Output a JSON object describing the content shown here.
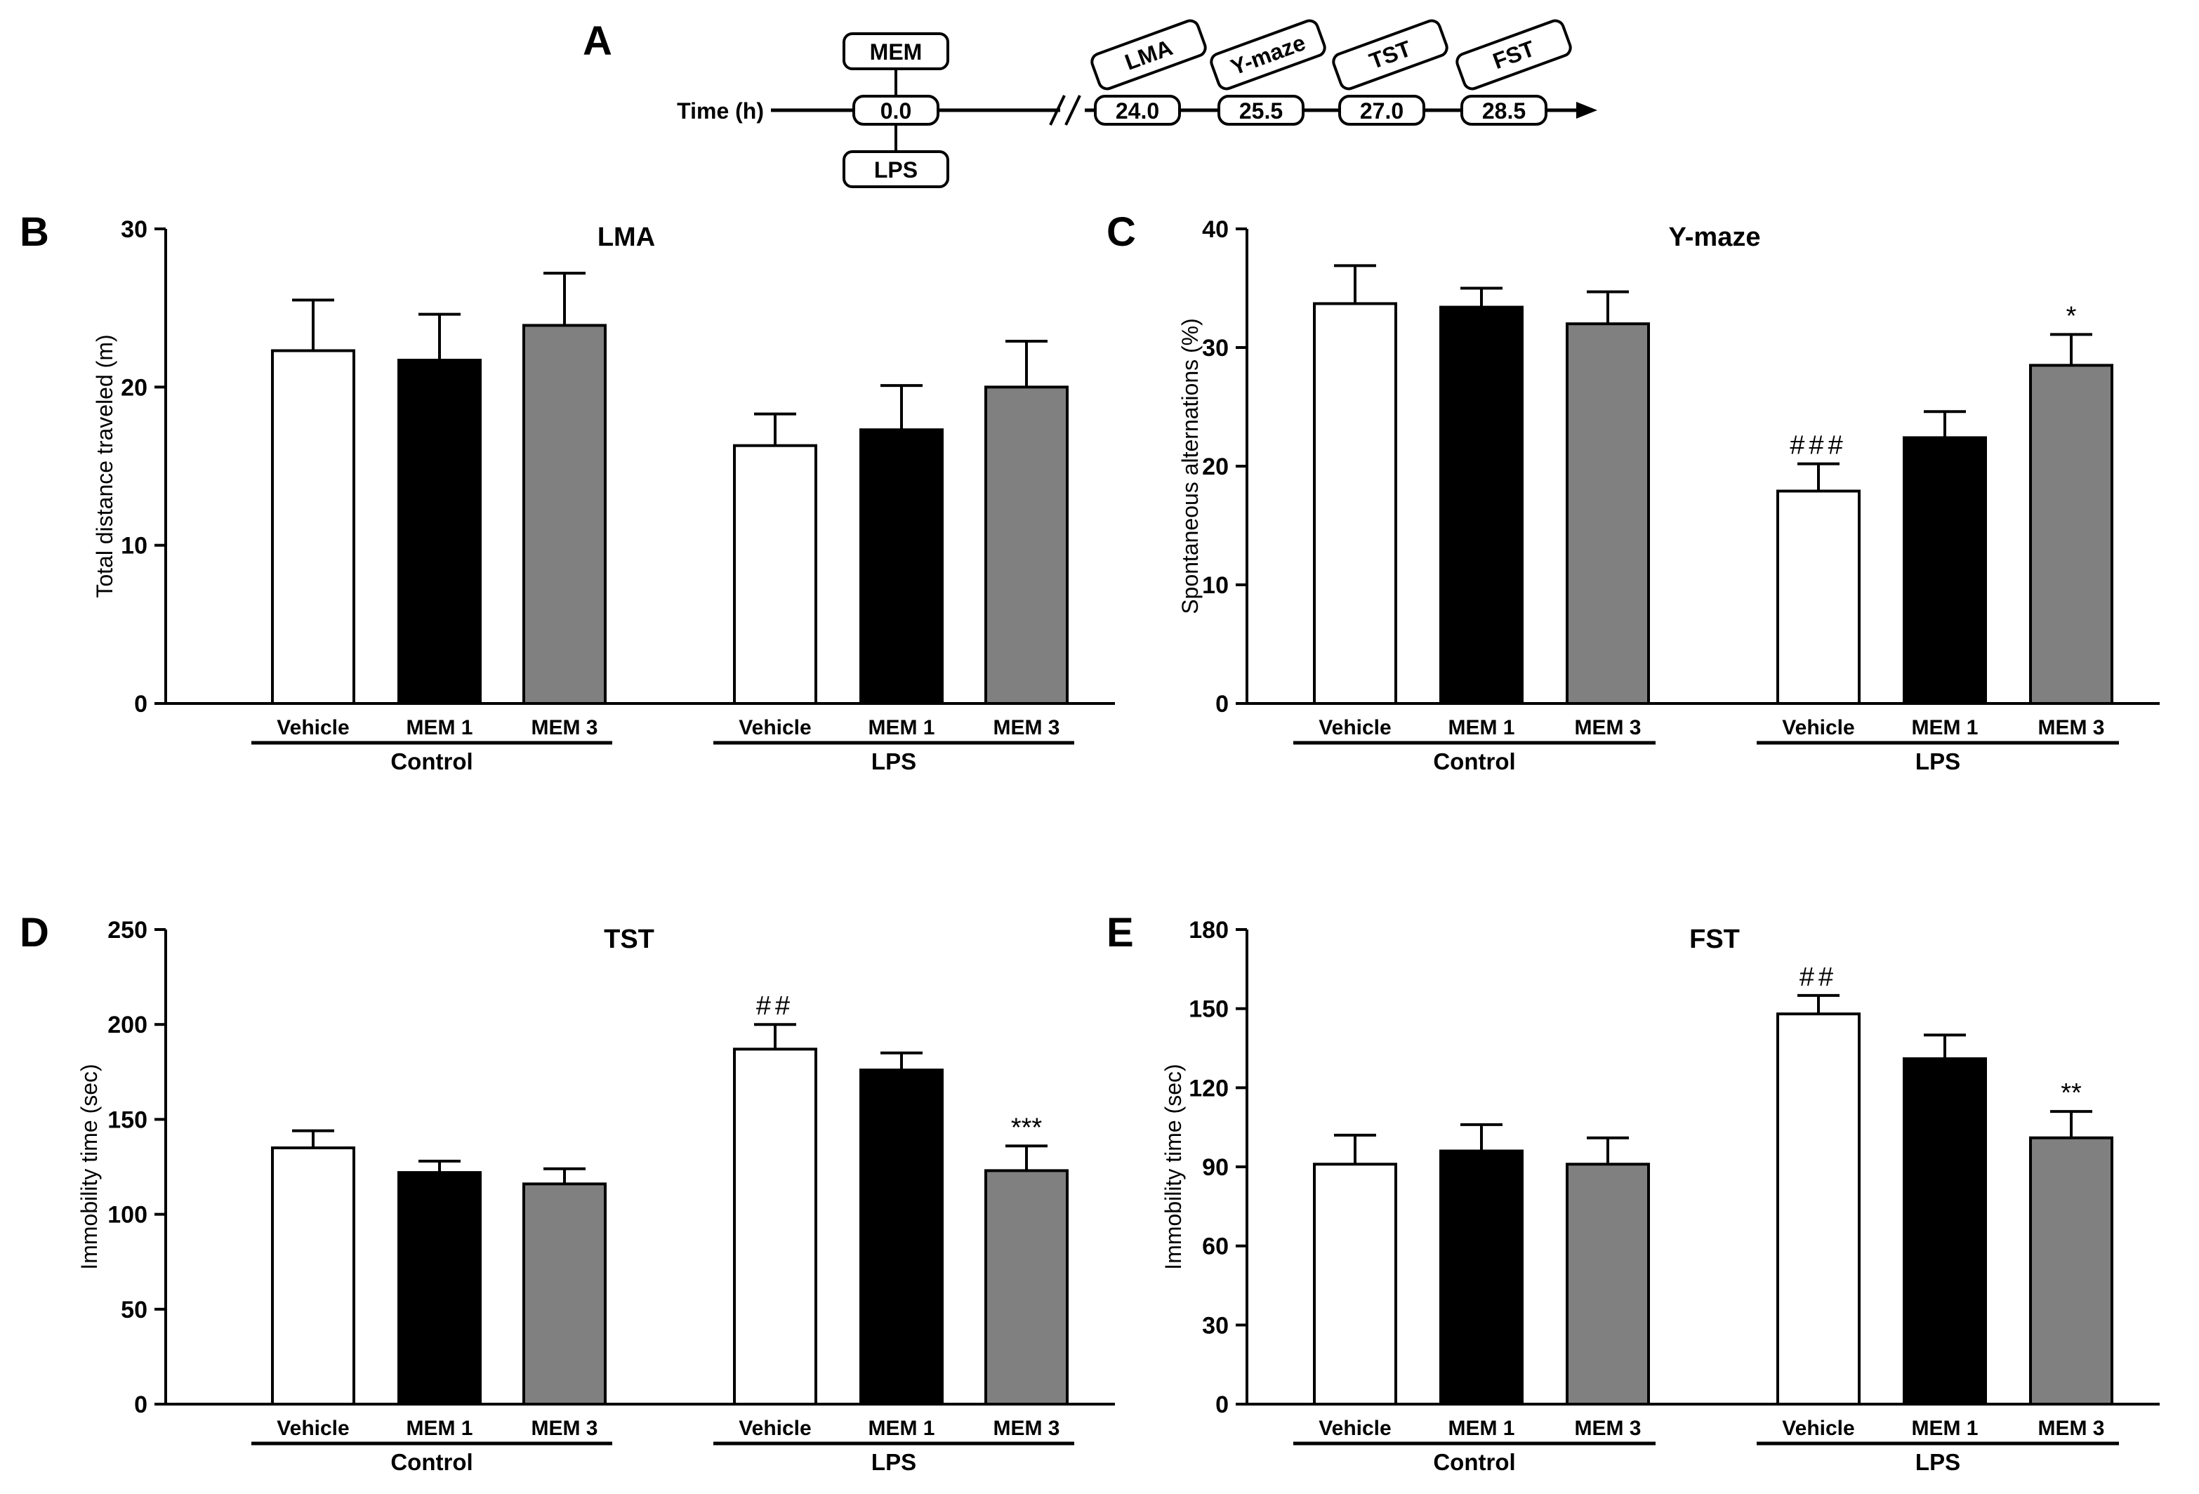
{
  "timeline": {
    "letter": "A",
    "axis_label": "Time (h)",
    "pre_events": [
      {
        "label": "MEM",
        "position": "above",
        "time": "0.0"
      },
      {
        "label": "LPS",
        "position": "below",
        "time": "0.0"
      }
    ],
    "times": [
      "0.0",
      "24.0",
      "25.5",
      "27.0",
      "28.5"
    ],
    "tests": [
      {
        "label": "LMA",
        "time": "24.0"
      },
      {
        "label": "Y-maze",
        "time": "25.5"
      },
      {
        "label": "TST",
        "time": "27.0"
      },
      {
        "label": "FST",
        "time": "28.5"
      }
    ]
  },
  "colors": {
    "vehicle": "#ffffff",
    "mem1": "#000000",
    "mem3": "#808080",
    "stroke": "#000000"
  },
  "chart_data": [
    {
      "letter": "B",
      "type": "bar",
      "title": "LMA",
      "ylabel": "Total distance traveled (m)",
      "ylim": [
        0,
        30
      ],
      "yticks": [
        0,
        10,
        20,
        30
      ],
      "categories": [
        "Vehicle",
        "MEM 1",
        "MEM 3",
        "Vehicle",
        "MEM 1",
        "MEM 3"
      ],
      "groups": [
        "Control",
        "LPS"
      ],
      "values": [
        22.3,
        21.7,
        23.9,
        16.3,
        17.3,
        20.0
      ],
      "errors": [
        3.2,
        2.9,
        3.3,
        2.0,
        2.8,
        2.9
      ],
      "annotations": [
        "",
        "",
        "",
        "",
        "",
        ""
      ]
    },
    {
      "letter": "C",
      "type": "bar",
      "title": "Y-maze",
      "ylabel": "Spontaneous alternations (%)",
      "ylim": [
        0,
        40
      ],
      "yticks": [
        0,
        10,
        20,
        30,
        40
      ],
      "categories": [
        "Vehicle",
        "MEM 1",
        "MEM 3",
        "Vehicle",
        "MEM 1",
        "MEM 3"
      ],
      "groups": [
        "Control",
        "LPS"
      ],
      "values": [
        33.7,
        33.4,
        32.0,
        17.9,
        22.4,
        28.5
      ],
      "errors": [
        3.2,
        1.6,
        2.7,
        2.3,
        2.2,
        2.6
      ],
      "annotations": [
        "",
        "",
        "",
        "###",
        "",
        "*"
      ]
    },
    {
      "letter": "D",
      "type": "bar",
      "title": "TST",
      "ylabel": "Immobility time (sec)",
      "ylim": [
        0,
        250
      ],
      "yticks": [
        0,
        50,
        100,
        150,
        200,
        250
      ],
      "categories": [
        "Vehicle",
        "MEM 1",
        "MEM 3",
        "Vehicle",
        "MEM 1",
        "MEM 3"
      ],
      "groups": [
        "Control",
        "LPS"
      ],
      "values": [
        135,
        122,
        116,
        187,
        176,
        123
      ],
      "errors": [
        9,
        6,
        8,
        13,
        9,
        13
      ],
      "annotations": [
        "",
        "",
        "",
        "##",
        "",
        "***"
      ]
    },
    {
      "letter": "E",
      "type": "bar",
      "title": "FST",
      "ylabel": "Immobility time (sec)",
      "ylim": [
        0,
        180
      ],
      "yticks": [
        0,
        30,
        60,
        90,
        120,
        150,
        180
      ],
      "categories": [
        "Vehicle",
        "MEM 1",
        "MEM 3",
        "Vehicle",
        "MEM 1",
        "MEM 3"
      ],
      "groups": [
        "Control",
        "LPS"
      ],
      "values": [
        91,
        96,
        91,
        148,
        131,
        101
      ],
      "errors": [
        11,
        10,
        10,
        7,
        9,
        10
      ],
      "annotations": [
        "",
        "",
        "",
        "##",
        "",
        "**"
      ]
    }
  ]
}
